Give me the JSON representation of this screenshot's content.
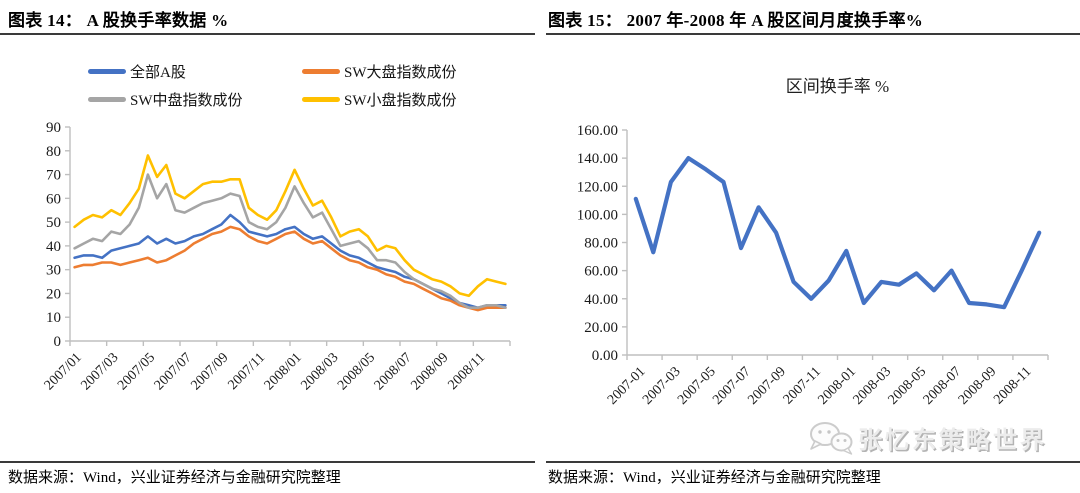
{
  "figures": {
    "left": {
      "title": "图表 14： A 股换手率数据 %",
      "source": "数据来源：Wind，兴业证券经济与金融研究院整理"
    },
    "right": {
      "title": "图表 15： 2007 年-2008 年 A 股区间月度换手率%",
      "source": "数据来源：Wind，兴业证券经济与金融研究院整理"
    }
  },
  "watermark": {
    "icon": "wechat-icon",
    "text": "张忆东策略世界"
  },
  "colors": {
    "axis_line": "#BFBFBF",
    "axis_text": "#1a1a1a",
    "title_text": "#000000",
    "series_blue": "#4472C4",
    "series_orange": "#ED7D31",
    "series_gray": "#A5A5A5",
    "series_yellow": "#FFC000"
  },
  "chart_data": [
    {
      "type": "line",
      "title": "",
      "ylabel": "",
      "xlabel": "",
      "ylim": [
        0,
        90
      ],
      "ytick_step": 10,
      "ytick_labels": [
        "0",
        "10",
        "20",
        "30",
        "40",
        "50",
        "60",
        "70",
        "80",
        "90"
      ],
      "grid": false,
      "legend_position": "top",
      "points_per_month": 2,
      "x_months": "2007/01 - 2008/12, two samples per month (daily turnover, approximated)",
      "xtick_labels": [
        "2007/01",
        "2007/03",
        "2007/05",
        "2007/07",
        "2007/09",
        "2007/11",
        "2008/01",
        "2008/03",
        "2008/05",
        "2008/07",
        "2008/09",
        "2008/11"
      ],
      "series": [
        {
          "name": "全部A股",
          "color": "#4472C4",
          "values": [
            35,
            36,
            36,
            35,
            38,
            39,
            40,
            41,
            44,
            41,
            43,
            41,
            42,
            44,
            45,
            47,
            49,
            53,
            50,
            46,
            45,
            44,
            45,
            47,
            48,
            45,
            43,
            44,
            41,
            38,
            36,
            35,
            33,
            31,
            30,
            29,
            27,
            26,
            24,
            22,
            20,
            18,
            16,
            15,
            14,
            15,
            15,
            15
          ]
        },
        {
          "name": "SW大盘指数成份",
          "color": "#ED7D31",
          "values": [
            31,
            32,
            32,
            33,
            33,
            32,
            33,
            34,
            35,
            33,
            34,
            36,
            38,
            41,
            43,
            45,
            46,
            48,
            47,
            44,
            42,
            41,
            43,
            45,
            46,
            43,
            41,
            42,
            39,
            36,
            34,
            33,
            31,
            30,
            28,
            27,
            25,
            24,
            22,
            20,
            18,
            17,
            15,
            14,
            13,
            14,
            14,
            14
          ]
        },
        {
          "name": "SW中盘指数成份",
          "color": "#A5A5A5",
          "values": [
            39,
            41,
            43,
            42,
            46,
            45,
            49,
            56,
            70,
            60,
            66,
            55,
            54,
            56,
            58,
            59,
            60,
            62,
            61,
            50,
            48,
            47,
            50,
            56,
            65,
            58,
            52,
            54,
            47,
            40,
            41,
            42,
            39,
            34,
            34,
            33,
            29,
            26,
            24,
            22,
            21,
            19,
            16,
            14,
            14,
            15,
            15,
            14
          ]
        },
        {
          "name": "SW小盘指数成份",
          "color": "#FFC000",
          "values": [
            48,
            51,
            53,
            52,
            55,
            53,
            58,
            64,
            78,
            69,
            74,
            62,
            60,
            63,
            66,
            67,
            67,
            68,
            68,
            56,
            53,
            51,
            55,
            63,
            72,
            64,
            57,
            59,
            52,
            44,
            46,
            47,
            44,
            38,
            40,
            39,
            34,
            30,
            28,
            26,
            25,
            23,
            20,
            19,
            23,
            26,
            25,
            24
          ]
        }
      ]
    },
    {
      "type": "line",
      "title": "区间换手率 %",
      "ylabel": "",
      "xlabel": "",
      "ylim": [
        0,
        160
      ],
      "ytick_step": 20,
      "ytick_labels": [
        "0.00",
        "20.00",
        "40.00",
        "60.00",
        "80.00",
        "100.00",
        "120.00",
        "140.00",
        "160.00"
      ],
      "grid": false,
      "line_color": "#4472C4",
      "categories": [
        "2007-01",
        "2007-02",
        "2007-03",
        "2007-04",
        "2007-05",
        "2007-06",
        "2007-07",
        "2007-08",
        "2007-09",
        "2007-10",
        "2007-11",
        "2007-12",
        "2008-01",
        "2008-02",
        "2008-03",
        "2008-04",
        "2008-05",
        "2008-06",
        "2008-07",
        "2008-08",
        "2008-09",
        "2008-10",
        "2008-11",
        "2008-12"
      ],
      "xtick_labels": [
        "2007-01",
        "2007-03",
        "2007-05",
        "2007-07",
        "2007-09",
        "2007-11",
        "2008-01",
        "2008-03",
        "2008-05",
        "2008-07",
        "2008-09",
        "2008-11"
      ],
      "values": [
        111,
        73,
        123,
        140,
        132,
        123,
        76,
        105,
        87,
        52,
        40,
        53,
        74,
        37,
        52,
        50,
        58,
        46,
        60,
        37,
        36,
        34,
        60,
        87
      ]
    }
  ]
}
